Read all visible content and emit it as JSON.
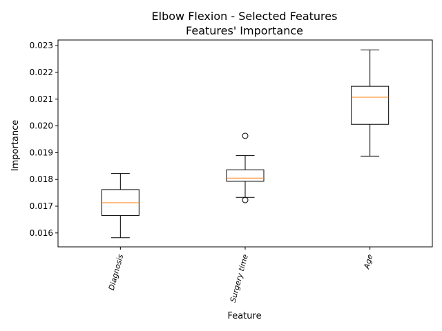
{
  "chart_data": {
    "type": "box",
    "title": "Elbow Flexion - Selected Features",
    "subtitle": "Features' Importance",
    "xlabel": "Feature",
    "ylabel": "Importance",
    "ylim": [
      0.01548,
      0.02321
    ],
    "yticks": [
      "0.016",
      "0.017",
      "0.018",
      "0.019",
      "0.020",
      "0.021",
      "0.022",
      "0.023"
    ],
    "categories": [
      "Diagnosis",
      "Surgery time",
      "Age"
    ],
    "boxes": [
      {
        "whislo": 0.01582,
        "q1": 0.01665,
        "med": 0.01713,
        "q3": 0.01762,
        "whishi": 0.01822,
        "fliers": []
      },
      {
        "whislo": 0.01733,
        "q1": 0.01793,
        "med": 0.01805,
        "q3": 0.01836,
        "whishi": 0.01889,
        "fliers": [
          0.01963,
          0.01723
        ]
      },
      {
        "whislo": 0.01887,
        "q1": 0.02006,
        "med": 0.02107,
        "q3": 0.02148,
        "whishi": 0.02284,
        "fliers": []
      }
    ],
    "colors": {
      "box": "#000000",
      "median": "#ff7f0e",
      "axis": "#000000",
      "background": "#ffffff"
    },
    "grid": false,
    "xtick_rotation": 75
  }
}
